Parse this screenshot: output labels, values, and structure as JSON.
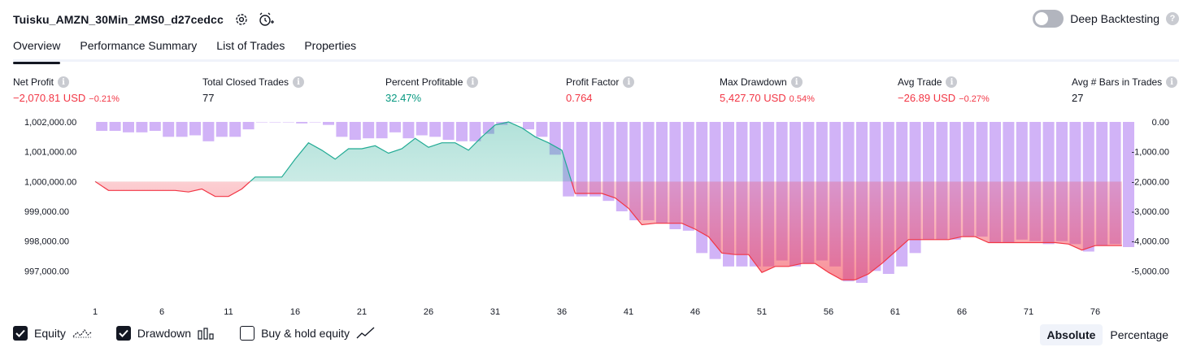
{
  "header": {
    "strategy_title": "Tuisku_AMZN_30Min_2MS0_d27cedcc",
    "deep_backtesting_label": "Deep Backtesting",
    "deep_backtesting_enabled": false
  },
  "tabs": [
    {
      "label": "Overview",
      "active": true
    },
    {
      "label": "Performance Summary",
      "active": false
    },
    {
      "label": "List of Trades",
      "active": false
    },
    {
      "label": "Properties",
      "active": false
    }
  ],
  "metrics": {
    "net_profit": {
      "label": "Net Profit",
      "value": "−2,070.81 USD",
      "pct": "−0.21%"
    },
    "total_closed_trades": {
      "label": "Total Closed Trades",
      "value": "77"
    },
    "percent_profitable": {
      "label": "Percent Profitable",
      "value": "32.47%"
    },
    "profit_factor": {
      "label": "Profit Factor",
      "value": "0.764"
    },
    "max_drawdown": {
      "label": "Max Drawdown",
      "value": "5,427.70 USD",
      "pct": "0.54%"
    },
    "avg_trade": {
      "label": "Avg Trade",
      "value": "−26.89 USD",
      "pct": "−0.27%"
    },
    "avg_bars": {
      "label": "Avg # Bars in Trades",
      "value": "27"
    }
  },
  "legend": {
    "equity": {
      "label": "Equity",
      "checked": true
    },
    "drawdown": {
      "label": "Drawdown",
      "checked": true
    },
    "buy_hold": {
      "label": "Buy & hold equity",
      "checked": false
    }
  },
  "mode": {
    "absolute_label": "Absolute",
    "percentage_label": "Percentage",
    "selected": "Absolute"
  },
  "colors": {
    "positive": "#089981",
    "negative": "#f23645",
    "drawdown_bar": "#d1b3f7",
    "equity_line_up": "#22ab94",
    "equity_line_down": "#f23645"
  },
  "chart_data": {
    "type": "area",
    "x": [
      1,
      2,
      3,
      4,
      5,
      6,
      7,
      8,
      9,
      10,
      11,
      12,
      13,
      14,
      15,
      16,
      17,
      18,
      19,
      20,
      21,
      22,
      23,
      24,
      25,
      26,
      27,
      28,
      29,
      30,
      31,
      32,
      33,
      34,
      35,
      36,
      37,
      38,
      39,
      40,
      41,
      42,
      43,
      44,
      45,
      46,
      47,
      48,
      49,
      50,
      51,
      52,
      53,
      54,
      55,
      56,
      57,
      58,
      59,
      60,
      61,
      62,
      63,
      64,
      65,
      66,
      67,
      68,
      69,
      70,
      71,
      72,
      73,
      74,
      75,
      76,
      77,
      78
    ],
    "x_ticks": [
      "1",
      "6",
      "11",
      "16",
      "21",
      "26",
      "31",
      "36",
      "41",
      "46",
      "51",
      "56",
      "61",
      "66",
      "71",
      "76"
    ],
    "left_axis": {
      "ticks": [
        "1,002,000.00",
        "1,001,000.00",
        "1,000,000.00",
        "999,000.00",
        "998,000.00",
        "997,000.00"
      ],
      "ylim": [
        996600,
        1002000
      ]
    },
    "right_axis": {
      "ticks": [
        "0.00",
        "-1,000.00",
        "-2,000.00",
        "-3,000.00",
        "-4,000.00",
        "-5,000.00"
      ],
      "ylim": [
        -5400,
        0
      ]
    },
    "baseline": 1000000,
    "series": [
      {
        "name": "Equity",
        "axis": "left",
        "values": [
          1000000,
          999700,
          999700,
          999700,
          999700,
          999700,
          999700,
          999650,
          999750,
          999500,
          999500,
          999750,
          1000150,
          1000150,
          1000150,
          1000750,
          1001300,
          1001050,
          1000750,
          1001100,
          1001100,
          1001200,
          1000950,
          1001100,
          1001450,
          1001150,
          1001300,
          1001300,
          1001050,
          1001500,
          1001900,
          1002000,
          1001800,
          1001500,
          1001300,
          1001050,
          999600,
          999600,
          999600,
          999450,
          999100,
          998550,
          998600,
          998600,
          998600,
          998400,
          998150,
          997600,
          997550,
          997550,
          996950,
          997150,
          997150,
          997250,
          997250,
          996950,
          996700,
          996700,
          996900,
          997250,
          997650,
          998050,
          998050,
          998050,
          998050,
          998150,
          998150,
          997950,
          997950,
          997950,
          997950,
          997950,
          997950,
          997900,
          997700,
          997850,
          997850,
          997850
        ],
        "values_estimated": true
      },
      {
        "name": "Drawdown",
        "axis": "right",
        "type": "bar",
        "values": [
          -300,
          -300,
          -350,
          -350,
          -300,
          -500,
          -500,
          -450,
          -650,
          -500,
          -500,
          -250,
          0,
          0,
          0,
          -50,
          0,
          -100,
          -500,
          -600,
          -550,
          -550,
          -350,
          -550,
          -450,
          -500,
          -600,
          -650,
          -650,
          -400,
          -100,
          0,
          -250,
          -500,
          -1100,
          -2500,
          -2500,
          -2500,
          -2650,
          -3000,
          -3300,
          -3300,
          -3400,
          -3600,
          -3650,
          -4400,
          -4600,
          -4850,
          -4850,
          -4850,
          -4850,
          -4650,
          -4850,
          -4750,
          -4650,
          -4850,
          -5350,
          -5400,
          -5000,
          -5100,
          -4850,
          -4400,
          -3950,
          -3950,
          -3950,
          -3850,
          -3850,
          -4050,
          -4050,
          -3950,
          -4000,
          -4100,
          -4000,
          -4100,
          -4350,
          -4150,
          -4100,
          -4200
        ],
        "values_estimated": true
      }
    ],
    "grid": false,
    "legend_position": "bottom-left"
  }
}
